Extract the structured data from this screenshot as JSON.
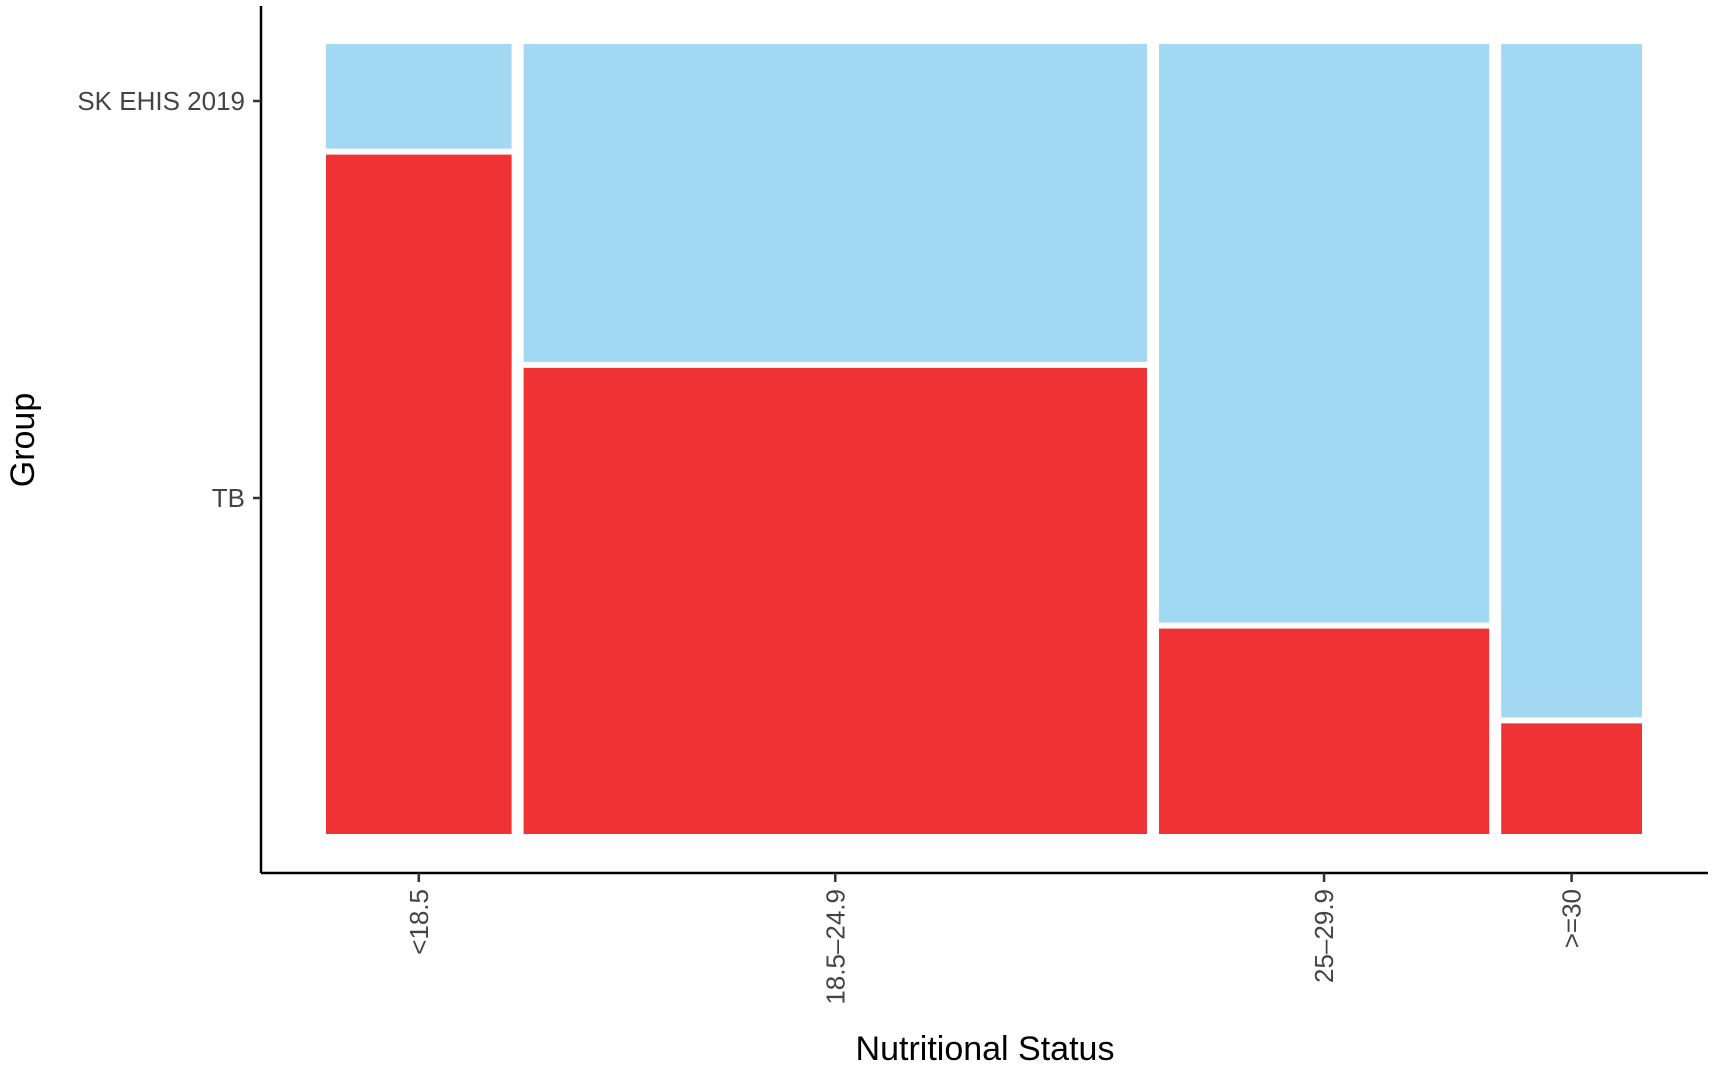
{
  "chart_data": {
    "type": "mosaic",
    "xlabel": "Nutritional Status",
    "ylabel": "Group",
    "categories": [
      "<18.5",
      "18.5–24.9",
      "25–29.9",
      ">=30"
    ],
    "category_share": [
      0.145,
      0.487,
      0.258,
      0.11
    ],
    "groups": [
      "SK EHIS 2019",
      "TB"
    ],
    "series": [
      {
        "name": "TB",
        "color": "#ef3335",
        "proportions": [
          0.86,
          0.59,
          0.26,
          0.14
        ]
      },
      {
        "name": "SK EHIS 2019",
        "color": "#a2d8f1",
        "proportions": [
          0.14,
          0.41,
          0.74,
          0.86
        ]
      }
    ],
    "y_ticks": [
      "SK EHIS 2019",
      "TB"
    ],
    "grid": false,
    "legend": "none"
  }
}
